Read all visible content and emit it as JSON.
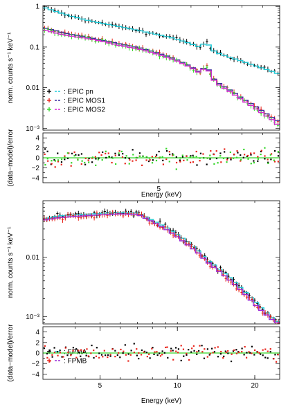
{
  "chart_data": [
    {
      "type": "scatter",
      "panel": "top",
      "x_scale": "log",
      "y_scale": "log",
      "xlim": [
        2.6,
        9.9
      ],
      "ylim": [
        0.0009,
        1.05
      ],
      "ylabel": "norm. counts s⁻¹ keV⁻¹",
      "yticks": [
        {
          "value": 1,
          "label": "1"
        },
        {
          "value": 0.1,
          "label": "0.1"
        },
        {
          "value": 0.01,
          "label": "0.01"
        },
        {
          "value": 0.001,
          "label": "10⁻³"
        }
      ],
      "legend_placement": "bottom-left",
      "series": [
        {
          "name": "EPIC pn",
          "data_color": "#000000",
          "model_color": "#22cbd8",
          "points": [
            [
              2.6,
              0.96
            ],
            [
              2.8,
              0.75
            ],
            [
              3.0,
              0.6
            ],
            [
              3.3,
              0.47
            ],
            [
              3.6,
              0.39
            ],
            [
              4.0,
              0.32
            ],
            [
              4.5,
              0.25
            ],
            [
              5.0,
              0.2
            ],
            [
              5.5,
              0.16
            ],
            [
              6.0,
              0.12
            ],
            [
              6.3,
              0.1
            ],
            [
              6.55,
              0.135
            ],
            [
              6.75,
              0.085
            ],
            [
              7.0,
              0.07
            ],
            [
              7.5,
              0.055
            ],
            [
              8.0,
              0.045
            ],
            [
              8.5,
              0.036
            ],
            [
              9.0,
              0.03
            ],
            [
              9.5,
              0.025
            ],
            [
              9.9,
              0.021
            ]
          ]
        },
        {
          "name": "EPIC MOS1",
          "data_color": "#e8231a",
          "model_color": "#3b2a9e",
          "points": [
            [
              2.6,
              0.3
            ],
            [
              2.8,
              0.25
            ],
            [
              3.0,
              0.21
            ],
            [
              3.3,
              0.18
            ],
            [
              3.6,
              0.15
            ],
            [
              4.0,
              0.12
            ],
            [
              4.5,
              0.095
            ],
            [
              5.0,
              0.07
            ],
            [
              5.5,
              0.05
            ],
            [
              6.0,
              0.033
            ],
            [
              6.3,
              0.024
            ],
            [
              6.55,
              0.036
            ],
            [
              6.75,
              0.018
            ],
            [
              7.0,
              0.013
            ],
            [
              7.5,
              0.0085
            ],
            [
              8.0,
              0.0055
            ],
            [
              8.5,
              0.0038
            ],
            [
              9.0,
              0.0026
            ],
            [
              9.5,
              0.0018
            ],
            [
              9.9,
              0.0014
            ]
          ]
        },
        {
          "name": "EPIC MOS2",
          "data_color": "#35d629",
          "model_color": "#d62ad1",
          "points": [
            [
              2.6,
              0.27
            ],
            [
              2.8,
              0.22
            ],
            [
              3.0,
              0.19
            ],
            [
              3.3,
              0.165
            ],
            [
              3.6,
              0.14
            ],
            [
              4.0,
              0.11
            ],
            [
              4.5,
              0.088
            ],
            [
              5.0,
              0.065
            ],
            [
              5.5,
              0.047
            ],
            [
              6.0,
              0.031
            ],
            [
              6.3,
              0.023
            ],
            [
              6.55,
              0.034
            ],
            [
              6.75,
              0.017
            ],
            [
              7.0,
              0.012
            ],
            [
              7.5,
              0.0078
            ],
            [
              8.0,
              0.005
            ],
            [
              8.5,
              0.0034
            ],
            [
              9.0,
              0.0023
            ],
            [
              9.5,
              0.0016
            ],
            [
              9.9,
              0.0011
            ]
          ]
        }
      ]
    },
    {
      "type": "scatter",
      "panel": "top-residuals",
      "x_scale": "log",
      "xlim": [
        2.6,
        9.9
      ],
      "ylim": [
        -5,
        5
      ],
      "ylabel": "(data−model)/error",
      "xlabel": "Energy (keV)",
      "xticks": [
        {
          "value": 5,
          "label": "5"
        }
      ],
      "yticks": [
        {
          "value": 4,
          "label": "4"
        },
        {
          "value": 2,
          "label": "2"
        },
        {
          "value": 0,
          "label": "0"
        },
        {
          "value": -2,
          "label": "−2"
        },
        {
          "value": -4,
          "label": "−4"
        }
      ],
      "zero_line_color": "#35d629",
      "residual_spread": 1.3
    },
    {
      "type": "scatter",
      "panel": "bottom",
      "x_scale": "log",
      "y_scale": "log",
      "xlim": [
        3,
        25
      ],
      "ylim": [
        0.00075,
        0.09
      ],
      "ylabel": "norm. counts s⁻¹ keV⁻¹",
      "yticks": [
        {
          "value": 0.01,
          "label": "0.01"
        },
        {
          "value": 0.001,
          "label": "10⁻³"
        }
      ],
      "legend_placement": "bottom-left",
      "series": [
        {
          "name": "FPMA",
          "data_color": "#000000",
          "model_color": "#22cbd8",
          "points": [
            [
              3.0,
              0.045
            ],
            [
              3.5,
              0.05
            ],
            [
              4.0,
              0.052
            ],
            [
              5.0,
              0.055
            ],
            [
              6.0,
              0.057
            ],
            [
              7.0,
              0.056
            ],
            [
              8.0,
              0.042
            ],
            [
              9.0,
              0.032
            ],
            [
              10.0,
              0.024
            ],
            [
              11.0,
              0.018
            ],
            [
              12.0,
              0.013
            ],
            [
              13.0,
              0.009
            ],
            [
              14.0,
              0.0072
            ],
            [
              16.0,
              0.0045
            ],
            [
              18.0,
              0.0028
            ],
            [
              20.0,
              0.0018
            ],
            [
              22.0,
              0.0012
            ],
            [
              24.0,
              0.00085
            ],
            [
              25.0,
              0.0008
            ]
          ]
        },
        {
          "name": "FPMB",
          "data_color": "#e8231a",
          "model_color": "#9b2bd6",
          "points": [
            [
              3.0,
              0.042
            ],
            [
              3.5,
              0.047
            ],
            [
              4.0,
              0.049
            ],
            [
              5.0,
              0.052
            ],
            [
              6.0,
              0.054
            ],
            [
              7.0,
              0.053
            ],
            [
              8.0,
              0.04
            ],
            [
              9.0,
              0.03
            ],
            [
              10.0,
              0.022
            ],
            [
              11.0,
              0.016
            ],
            [
              12.0,
              0.012
            ],
            [
              13.0,
              0.0085
            ],
            [
              14.0,
              0.0066
            ],
            [
              16.0,
              0.0041
            ],
            [
              18.0,
              0.0026
            ],
            [
              20.0,
              0.0016
            ],
            [
              22.0,
              0.0011
            ],
            [
              24.0,
              0.0008
            ],
            [
              25.0,
              0.00077
            ]
          ]
        }
      ]
    },
    {
      "type": "scatter",
      "panel": "bottom-residuals",
      "x_scale": "log",
      "xlim": [
        3,
        25
      ],
      "ylim": [
        -5,
        5
      ],
      "ylabel": "(data−model)/error",
      "xlabel": "Energy (keV)",
      "xticks": [
        {
          "value": 5,
          "label": "5"
        },
        {
          "value": 10,
          "label": "10"
        },
        {
          "value": 20,
          "label": "20"
        }
      ],
      "yticks": [
        {
          "value": 4,
          "label": "4"
        },
        {
          "value": 2,
          "label": "2"
        },
        {
          "value": 0,
          "label": "0"
        },
        {
          "value": -2,
          "label": "−2"
        },
        {
          "value": -4,
          "label": "−4"
        }
      ],
      "zero_line_color": "#35d629",
      "residual_spread": 1.2
    }
  ]
}
